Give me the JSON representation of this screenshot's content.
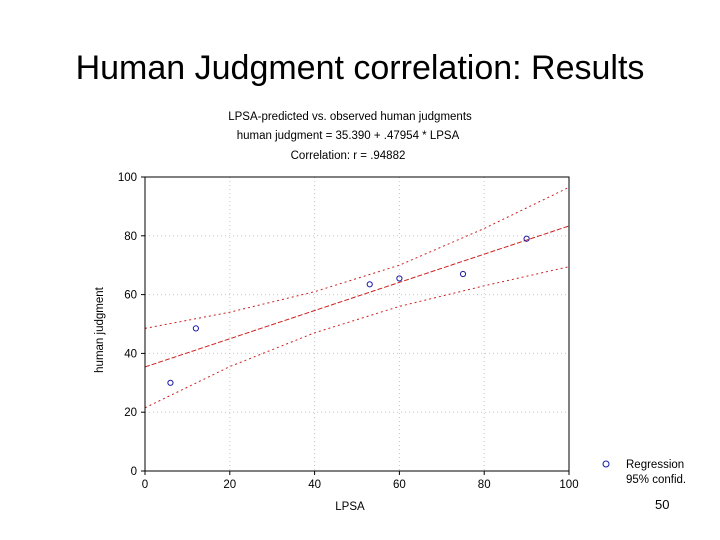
{
  "slide": {
    "title": "Human Judgment correlation: Results",
    "page_number": "50"
  },
  "colors": {
    "regression_line": "#cc2222",
    "points": "#1a1aa8",
    "axis": "#000000",
    "grid": "#c8c8c8"
  },
  "chart_data": {
    "type": "scatter",
    "title": "LPSA-predicted vs. observed human judgments",
    "subtitle_lines": [
      "human judgment = 35.390 + .47954 * LPSA",
      "Correlation: r = .94882"
    ],
    "xlabel": "LPSA",
    "ylabel": "human judgment",
    "xlim": [
      0,
      100
    ],
    "ylim": [
      0,
      100
    ],
    "x_ticks": [
      0,
      20,
      40,
      60,
      80,
      100
    ],
    "y_ticks": [
      0,
      20,
      40,
      60,
      80,
      100
    ],
    "grid": true,
    "legend_position": "bottom-right",
    "legend": [
      "Regression",
      "95% confid."
    ],
    "regression": {
      "intercept": 35.39,
      "slope": 0.47954
    },
    "confidence_band": {
      "upper": [
        [
          0,
          48.5
        ],
        [
          20,
          54.0
        ],
        [
          40,
          61.0
        ],
        [
          60,
          70.0
        ],
        [
          80,
          82.5
        ],
        [
          100,
          96.5
        ]
      ],
      "lower": [
        [
          0,
          21.5
        ],
        [
          20,
          35.5
        ],
        [
          40,
          47.0
        ],
        [
          60,
          56.0
        ],
        [
          80,
          63.0
        ],
        [
          100,
          69.5
        ]
      ]
    },
    "points": [
      {
        "x": 6,
        "y": 30
      },
      {
        "x": 12,
        "y": 48.5
      },
      {
        "x": 53,
        "y": 63.5
      },
      {
        "x": 60,
        "y": 65.5
      },
      {
        "x": 75,
        "y": 67
      },
      {
        "x": 90,
        "y": 79
      }
    ]
  }
}
